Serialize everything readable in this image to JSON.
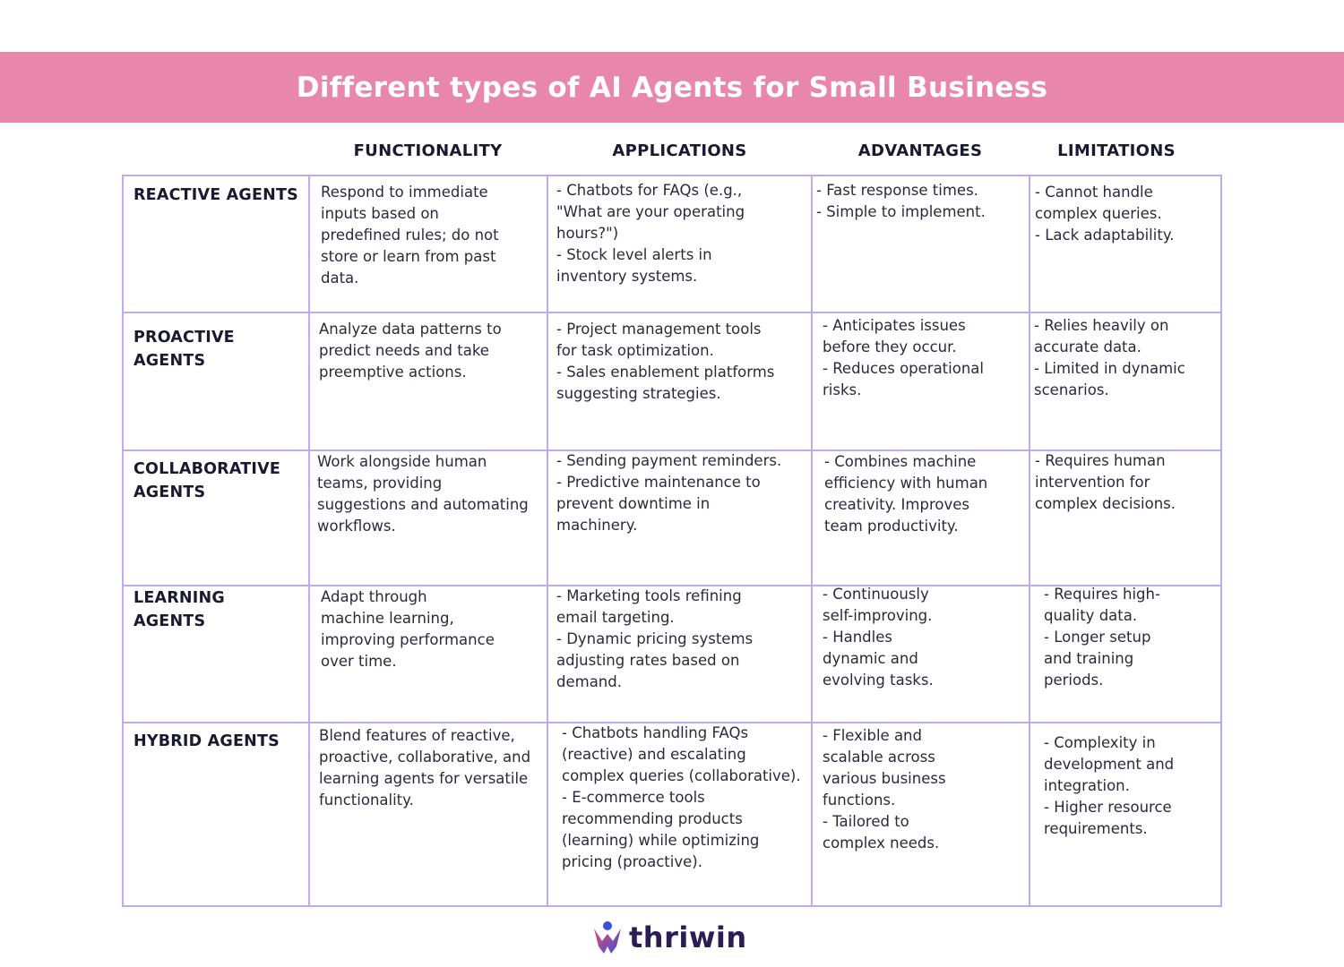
{
  "header": {
    "title": "Different types of AI Agents for Small Business"
  },
  "columns": {
    "functionality": "FUNCTIONALITY",
    "applications": "APPLICATIONS",
    "advantages": "ADVANTAGES",
    "limitations": "LIMITATIONS"
  },
  "rows": [
    {
      "label": "REACTIVE AGENTS",
      "functionality": "Respond to immediate\ninputs based on\npredefined rules; do not\nstore or learn from past\ndata.",
      "applications": "- Chatbots for FAQs (e.g.,\n\"What are your operating\nhours?\")\n- Stock level alerts in\ninventory systems.",
      "advantages": "- Fast response times.\n- Simple to implement.",
      "limitations": "- Cannot handle\ncomplex queries.\n- Lack adaptability."
    },
    {
      "label": "PROACTIVE\nAGENTS",
      "functionality": "Analyze data patterns to\npredict needs and take\npreemptive actions.",
      "applications": "- Project management tools\nfor task optimization.\n- Sales enablement platforms\nsuggesting strategies.",
      "advantages": " - Anticipates issues\nbefore they occur.\n - Reduces operational\nrisks.",
      "limitations": "- Relies heavily on\naccurate data.\n- Limited in dynamic\nscenarios."
    },
    {
      "label": "COLLABORATIVE\nAGENTS",
      "functionality": "Work alongside human\nteams, providing\nsuggestions and automating\nworkflows.",
      "applications": "- Sending payment reminders.\n- Predictive maintenance to\nprevent downtime in\nmachinery.",
      "advantages": "- Combines machine\nefficiency with human\ncreativity. Improves\nteam productivity.",
      "limitations": "- Requires human\nintervention for\ncomplex decisions."
    },
    {
      "label": "LEARNING\nAGENTS",
      "functionality": "Adapt through\nmachine learning,\nimproving performance\nover time.",
      "applications": "- Marketing tools refining\nemail targeting.\n- Dynamic pricing systems\nadjusting rates based on\ndemand.",
      "advantages": " - Continuously\nself-improving.\n - Handles\ndynamic and\nevolving tasks.",
      "limitations": " - Requires high-\nquality data.\n - Longer setup\nand training\nperiods."
    },
    {
      "label": "HYBRID AGENTS",
      "functionality": "Blend features of reactive,\nproactive, collaborative, and\nlearning agents for versatile\nfunctionality.",
      "applications": "- Chatbots handling FAQs\n(reactive) and escalating\ncomplex queries (collaborative).\n- E-commerce tools\nrecommending products\n(learning) while optimizing\npricing (proactive).",
      "advantages": " - Flexible and\nscalable across\nvarious business\nfunctions.\n - Tailored to\ncomplex needs.",
      "limitations": " - Complexity in\ndevelopment and\nintegration.\n - Higher resource\nrequirements."
    }
  ],
  "footer": {
    "logo_text": "thriwin"
  }
}
